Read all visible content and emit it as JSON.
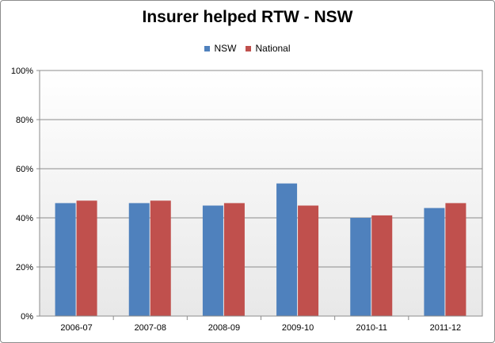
{
  "chart_data": {
    "type": "bar",
    "title": "Insurer helped RTW - NSW",
    "categories": [
      "2006-07",
      "2007-08",
      "2008-09",
      "2009-10",
      "2010-11",
      "2011-12"
    ],
    "series": [
      {
        "name": "NSW",
        "values": [
          46,
          46,
          45,
          54,
          40,
          44
        ],
        "color": "#4f81bd"
      },
      {
        "name": "National",
        "values": [
          47,
          47,
          46,
          45,
          41,
          46
        ],
        "color": "#c0504d"
      }
    ],
    "ylim": [
      0,
      100
    ],
    "yticks": [
      "0%",
      "20%",
      "40%",
      "60%",
      "80%",
      "100%"
    ],
    "xlabel": "",
    "ylabel": "",
    "grid": true,
    "legend_position": "top"
  }
}
